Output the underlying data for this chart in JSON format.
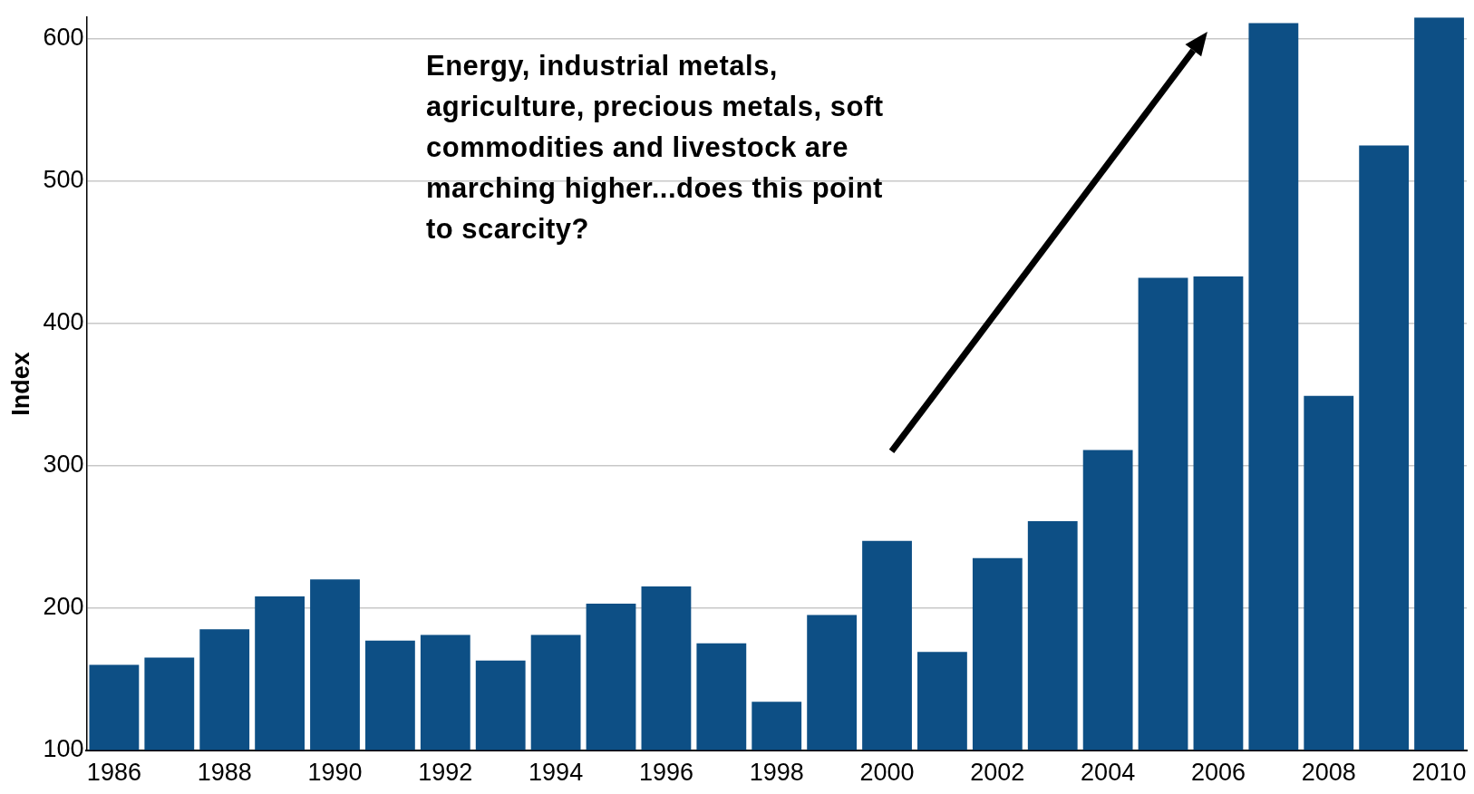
{
  "chart_data": {
    "type": "bar",
    "ylabel": "Index",
    "categories": [
      "1986",
      null,
      "1988",
      null,
      "1990",
      null,
      "1992",
      null,
      "1994",
      null,
      "1996",
      null,
      "1998",
      null,
      "2000",
      null,
      "2002",
      null,
      "2004",
      null,
      "2006",
      null,
      "2008",
      null,
      "2010"
    ],
    "values": [
      160,
      165,
      185,
      208,
      220,
      177,
      181,
      163,
      181,
      203,
      215,
      175,
      134,
      195,
      247,
      169,
      235,
      261,
      311,
      432,
      433,
      611,
      349,
      525,
      615
    ],
    "color": "#0d4f85",
    "ylim": [
      100,
      615
    ],
    "yticks": [
      100,
      200,
      300,
      400,
      500,
      600
    ],
    "grid": "y",
    "annotations": [
      "Energy, industrial metals, agriculture, precious metals, soft commodities and livestock are marching higher...does this point to scarcity?"
    ]
  }
}
